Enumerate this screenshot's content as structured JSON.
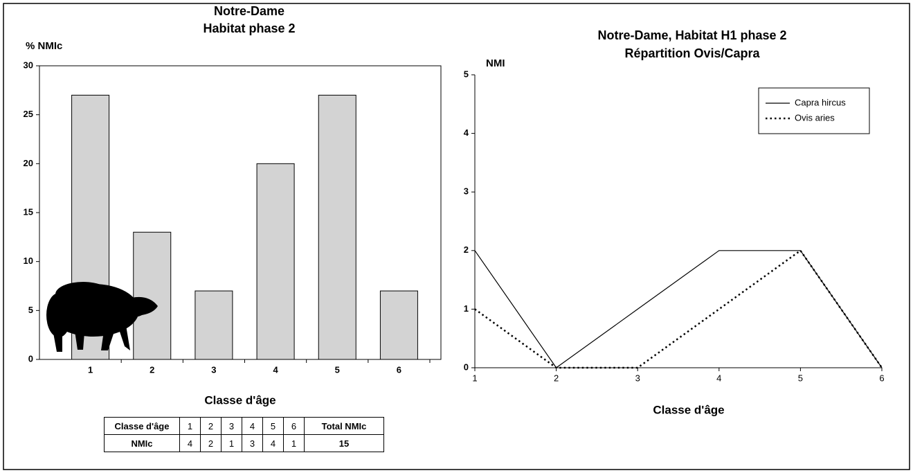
{
  "chart_data": [
    {
      "type": "bar",
      "title": [
        "Notre-Dame",
        "Habitat phase 2"
      ],
      "y_label": "% NMIc",
      "x_label": "Classe d'âge",
      "categories": [
        "1",
        "2",
        "3",
        "4",
        "5",
        "6"
      ],
      "values": [
        27,
        13,
        7,
        20,
        27,
        7
      ],
      "color": "#d3d3d3",
      "ylim": [
        0,
        30
      ],
      "yticks": [
        0,
        5,
        10,
        15,
        20,
        25,
        30
      ],
      "grid": false
    },
    {
      "type": "line",
      "title": [
        "Notre-Dame, Habitat H1 phase 2",
        "Répartition Ovis/Capra"
      ],
      "y_label": "NMI",
      "x_label": "Classe d'âge",
      "x": [
        1,
        2,
        3,
        4,
        5,
        6
      ],
      "xlim": [
        1,
        6
      ],
      "xticks": [
        1,
        2,
        3,
        4,
        5,
        6
      ],
      "ylim": [
        0,
        5
      ],
      "yticks": [
        0,
        1,
        2,
        3,
        4,
        5
      ],
      "grid": false,
      "legend": "upper right",
      "series": [
        {
          "name": "Capra hircus",
          "color": "#000000",
          "dash": "solid",
          "values": [
            2,
            0,
            1,
            2,
            2,
            0
          ]
        },
        {
          "name": "Ovis aries",
          "color": "#000000",
          "dash": "dotted",
          "values": [
            1,
            0,
            0,
            1,
            2,
            0
          ]
        }
      ]
    }
  ],
  "table": {
    "rows": [
      [
        "Classe d'âge",
        1,
        2,
        3,
        4,
        5,
        6,
        "Total NMIc"
      ],
      [
        "NMIc",
        4,
        2,
        1,
        3,
        4,
        1,
        15
      ]
    ]
  }
}
